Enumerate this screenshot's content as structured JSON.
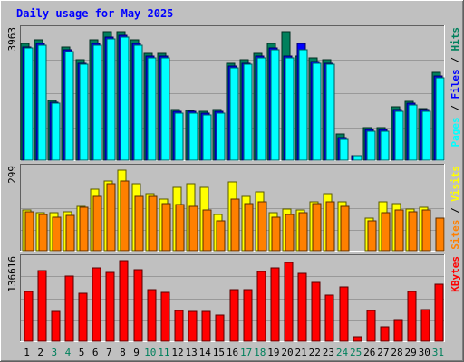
{
  "colors": {
    "background": "#c0c0c0",
    "plot_background": "#c0c0c0",
    "grid": "#999999",
    "title": "#0000ff",
    "hits": "#00805c",
    "files": "#0000ff",
    "pages": "#00ffff",
    "visits": "#ffff00",
    "sites": "#ff8000",
    "kbytes": "#ff0000",
    "weekday_label": "#000000",
    "weekend_label": "#00805c"
  },
  "chart_data": {
    "type": "bar",
    "title": "Daily usage for May 2025",
    "categories": [
      "1",
      "2",
      "3",
      "4",
      "5",
      "6",
      "7",
      "8",
      "9",
      "10",
      "11",
      "12",
      "13",
      "14",
      "15",
      "16",
      "17",
      "18",
      "19",
      "20",
      "21",
      "22",
      "23",
      "24",
      "25",
      "26",
      "27",
      "28",
      "29",
      "30",
      "31"
    ],
    "weekend_days": [
      "3",
      "4",
      "10",
      "11",
      "17",
      "18",
      "24",
      "25",
      "31"
    ],
    "panels": [
      {
        "name": "hits",
        "ymax_label": "3963",
        "ylim": [
          0,
          3963
        ],
        "legend": [
          "Pages",
          "Files",
          "Hits"
        ],
        "legend_separator": "/",
        "series": [
          {
            "name": "Hits",
            "values": [
              3600,
              3700,
              1850,
              3500,
              3100,
              3700,
              3963,
              3950,
              3700,
              3300,
              3300,
              1550,
              1530,
              1500,
              1560,
              3000,
              3100,
              3300,
              3600,
              3963,
              3200,
              3150,
              3100,
              800,
              0,
              1000,
              1000,
              1650,
              1820,
              1600,
              2700
            ]
          },
          {
            "name": "Files",
            "values": [
              3500,
              3600,
              1800,
              3400,
              3000,
              3600,
              3800,
              3850,
              3600,
              3200,
              3200,
              1500,
              1500,
              1450,
              1500,
              2900,
              3000,
              3200,
              3450,
              3200,
              3600,
              3050,
              3000,
              700,
              150,
              950,
              950,
              1550,
              1750,
              1550,
              2600
            ]
          },
          {
            "name": "Pages",
            "values": [
              3450,
              3550,
              1750,
              3350,
              2950,
              3550,
              3750,
              3800,
              3550,
              3150,
              3150,
              1450,
              1450,
              1400,
              1450,
              2850,
              2950,
              3150,
              3400,
              3150,
              3400,
              3000,
              2950,
              650,
              130,
              900,
              900,
              1500,
              1700,
              1500,
              2550
            ]
          }
        ]
      },
      {
        "name": "visits",
        "ymax_label": "299",
        "ylim": [
          0,
          299
        ],
        "legend": [
          "Sites",
          "Visits"
        ],
        "legend_separator": "/",
        "series": [
          {
            "name": "Visits",
            "values": [
              150,
              140,
              140,
              145,
              165,
              230,
              260,
              299,
              250,
              210,
              190,
              235,
              250,
              235,
              135,
              255,
              200,
              220,
              140,
              155,
              150,
              180,
              210,
              180,
              0,
              120,
              180,
              175,
              155,
              160,
              0
            ]
          },
          {
            "name": "Sites",
            "values": [
              145,
              135,
              125,
              130,
              160,
              200,
              250,
              260,
              200,
              200,
              175,
              170,
              165,
              150,
              110,
              190,
              175,
              180,
              125,
              135,
              140,
              175,
              180,
              165,
              0,
              110,
              140,
              150,
              145,
              150,
              120
            ]
          }
        ]
      },
      {
        "name": "kbytes",
        "ymax_label": "136616",
        "ylim": [
          0,
          136616
        ],
        "legend": [
          "KBytes"
        ],
        "series": [
          {
            "name": "KBytes",
            "values": [
              85000,
              120000,
              50000,
              110000,
              82000,
              125000,
              116000,
              136616,
              122000,
              88000,
              83000,
              52000,
              51000,
              50000,
              45000,
              88000,
              87000,
              118000,
              125000,
              134000,
              115000,
              100000,
              78000,
              92000,
              8000,
              52000,
              25000,
              36000,
              84000,
              54000,
              96000
            ]
          }
        ]
      }
    ]
  }
}
